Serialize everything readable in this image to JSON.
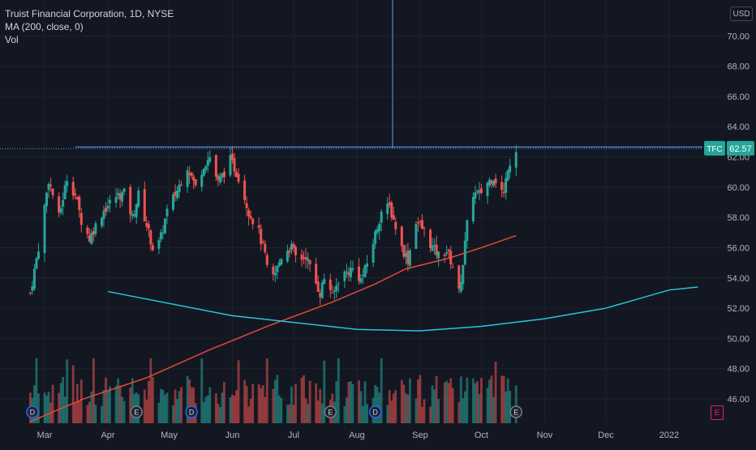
{
  "header": {
    "symbol_line": "Truist Financial Corporation, 1D, NYSE",
    "indicator_line": "MA (200, close, 0)",
    "volume_label": "Vol"
  },
  "currency": "USD",
  "last_price": {
    "ticker": "TFC",
    "value": "62.57"
  },
  "colors": {
    "background": "#131722",
    "up": "#26a69a",
    "down": "#ef5350",
    "ma": "#e5483a",
    "curve": "#26c6da",
    "resistance": "#5b9cf6",
    "badge": "#26a69a",
    "earnings": "#e91e63"
  },
  "markers": {
    "dividend": "D",
    "earnings": "E"
  },
  "chart_data": {
    "type": "candlestick",
    "title": "Truist Financial Corporation, 1D, NYSE",
    "y_axis": {
      "ticks": [
        "46.00",
        "48.00",
        "50.00",
        "52.00",
        "54.00",
        "56.00",
        "58.00",
        "60.00",
        "62.00",
        "64.00",
        "66.00",
        "68.00",
        "70.00"
      ],
      "range": [
        44.5,
        71.3
      ]
    },
    "x_axis": {
      "ticks": [
        "Mar",
        "Apr",
        "May",
        "Jun",
        "Jul",
        "Aug",
        "Sep",
        "Oct",
        "Nov",
        "Dec",
        "2022"
      ]
    },
    "price_anchors": [
      [
        "Feb 22",
        53.0
      ],
      [
        "Feb 26",
        56.0
      ],
      [
        "Mar 3",
        60.5
      ],
      [
        "Mar 8",
        58.0
      ],
      [
        "Mar 12",
        60.6
      ],
      [
        "Mar 16",
        59.5
      ],
      [
        "Mar 19",
        57.8
      ],
      [
        "Mar 23",
        56.6
      ],
      [
        "Mar 25",
        57.2
      ],
      [
        "Mar 30",
        58.5
      ],
      [
        "Apr 5",
        59.4
      ],
      [
        "Apr 9",
        59.6
      ],
      [
        "Apr 13",
        58.0
      ],
      [
        "Apr 16",
        59.5
      ],
      [
        "Apr 21",
        57.0
      ],
      [
        "Apr 24",
        55.5
      ],
      [
        "Apr 27",
        56.7
      ],
      [
        "Apr 30",
        58.4
      ],
      [
        "May 5",
        59.8
      ],
      [
        "May 10",
        61.4
      ],
      [
        "May 14",
        60.0
      ],
      [
        "May 18",
        61.5
      ],
      [
        "May 21",
        62.0
      ],
      [
        "May 25",
        60.3
      ],
      [
        "May 28",
        61.0
      ],
      [
        "May 31",
        61.8
      ],
      [
        "Jun 4",
        60.7
      ],
      [
        "Jun 9",
        58.4
      ],
      [
        "Jun 14",
        57.0
      ],
      [
        "Jun 17",
        55.5
      ],
      [
        "Jun 19",
        53.6
      ],
      [
        "Jun 22",
        54.3
      ],
      [
        "Jun 26",
        55.8
      ],
      [
        "Jun 30",
        56.0
      ],
      [
        "Jul 3",
        55.1
      ],
      [
        "Jul 7",
        55.5
      ],
      [
        "Jul 10",
        54.3
      ],
      [
        "Jul 14",
        53.0
      ],
      [
        "Jul 17",
        54.5
      ],
      [
        "Jul 20",
        52.7
      ],
      [
        "Jul 23",
        53.9
      ],
      [
        "Jul 26",
        54.3
      ],
      [
        "Jul 30",
        54.6
      ],
      [
        "Aug 3",
        53.9
      ],
      [
        "Aug 5",
        54.5
      ],
      [
        "Aug 9",
        56.4
      ],
      [
        "Aug 13",
        58.4
      ],
      [
        "Aug 17",
        58.7
      ],
      [
        "Aug 20",
        57.4
      ],
      [
        "Aug 23",
        56.0
      ],
      [
        "Aug 26",
        55.2
      ],
      [
        "Aug 30",
        57.8
      ],
      [
        "Sep 3",
        57.1
      ],
      [
        "Sep 7",
        56.0
      ],
      [
        "Sep 10",
        55.5
      ],
      [
        "Sep 14",
        55.8
      ],
      [
        "Sep 17",
        54.8
      ],
      [
        "Sep 20",
        53.0
      ],
      [
        "Sep 22",
        55.0
      ],
      [
        "Sep 24",
        57.5
      ],
      [
        "Sep 27",
        59.6
      ],
      [
        "Sep 30",
        59.5
      ],
      [
        "Oct 4",
        60.3
      ],
      [
        "Oct 7",
        60.7
      ],
      [
        "Oct 10",
        60.0
      ],
      [
        "Oct 12",
        59.5
      ],
      [
        "Oct 14",
        61.4
      ],
      [
        "Oct 18",
        62.57
      ]
    ],
    "ma_200": [
      [
        "Feb 22",
        44.5
      ],
      [
        "Mar 20",
        46.0
      ],
      [
        "Apr 20",
        47.4
      ],
      [
        "May 20",
        49.2
      ],
      [
        "Jun 20",
        50.9
      ],
      [
        "Jul 20",
        52.4
      ],
      [
        "Aug 10",
        53.6
      ],
      [
        "Aug 25",
        54.6
      ],
      [
        "Sep 15",
        55.3
      ],
      [
        "Oct 1",
        56.0
      ],
      [
        "Oct 18",
        56.8
      ]
    ],
    "curve": [
      [
        "Apr 1",
        53.1
      ],
      [
        "Jun 1",
        51.5
      ],
      [
        "Aug 1",
        50.6
      ],
      [
        "Sep 1",
        50.5
      ],
      [
        "Oct 1",
        50.8
      ],
      [
        "Nov 1",
        51.3
      ],
      [
        "Dec 1",
        52.0
      ],
      [
        "Jan 1",
        53.2
      ],
      [
        "Jan 15",
        53.4
      ]
    ],
    "resistance_level": 62.6,
    "last_price": 62.57,
    "dividend_dates": [
      "Feb 23",
      "May 12",
      "Aug 10"
    ],
    "earnings_dates": [
      "Apr 15",
      "Jul 19",
      "Oct 18"
    ]
  }
}
